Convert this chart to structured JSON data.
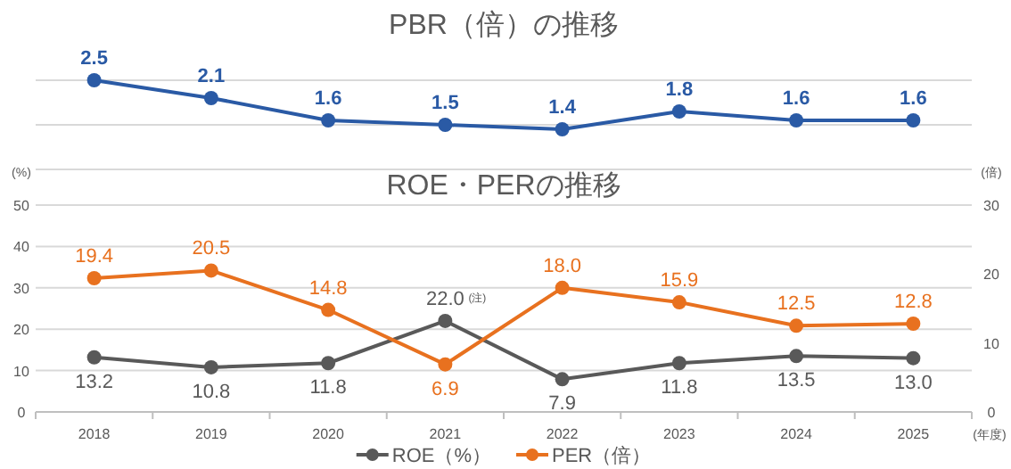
{
  "chart_data": [
    {
      "type": "line",
      "title": "PBR（倍）の推移",
      "categories": [
        null,
        null,
        null,
        null,
        null,
        null,
        null,
        null
      ],
      "series": [
        {
          "color": "#2a5aa5",
          "values": [
            2.5,
            2.1,
            1.6,
            1.5,
            1.4,
            1.8,
            1.6,
            1.6
          ]
        }
      ],
      "ylim": [
        0.5,
        2.5
      ],
      "yticks": [
        {
          "value": 0.5,
          "label": null
        },
        {
          "value": 1.5,
          "label": null
        },
        {
          "value": 2.5,
          "label": null
        }
      ],
      "tick_labels": false,
      "grid": "y",
      "data_labels": true,
      "marker": "circle"
    },
    {
      "type": "line",
      "title": "ROE・PERの推移",
      "categories": [
        "2018",
        "2019",
        "2020",
        "2021",
        "2022",
        "2023",
        "2024",
        "2025"
      ],
      "series": [
        {
          "name": "ROE（%）",
          "color": "#595959",
          "values": [
            13.2,
            10.8,
            11.8,
            22.0,
            7.9,
            11.8,
            13.5,
            13.0
          ],
          "value_labels": [
            "13.2",
            "10.8",
            "11.8",
            "22.0",
            "7.9",
            "11.8",
            "13.5",
            "13.0"
          ]
        },
        {
          "name": "PER（倍）",
          "color": "#e8711f",
          "axis": "y2",
          "values": [
            19.4,
            20.5,
            14.8,
            6.9,
            18.0,
            15.9,
            12.5,
            12.8
          ],
          "value_labels": [
            "19.4",
            "20.5",
            "14.8",
            "6.9",
            "18.0",
            "15.9",
            "12.5",
            "12.8"
          ]
        }
      ],
      "ylabel": "(%)",
      "y2label": "(倍)",
      "xlabel": "(年度)",
      "ylim": [
        0,
        50
      ],
      "yticks": [
        0,
        10,
        20,
        30,
        40,
        50
      ],
      "y2lim": [
        0,
        30
      ],
      "y2ticks": [
        0,
        10,
        20,
        30
      ],
      "grid": "y",
      "legend": "bottom",
      "marker": "circle",
      "annotations": [
        {
          "text": "(注)",
          "x": "2021",
          "y": 22.0
        }
      ]
    }
  ]
}
